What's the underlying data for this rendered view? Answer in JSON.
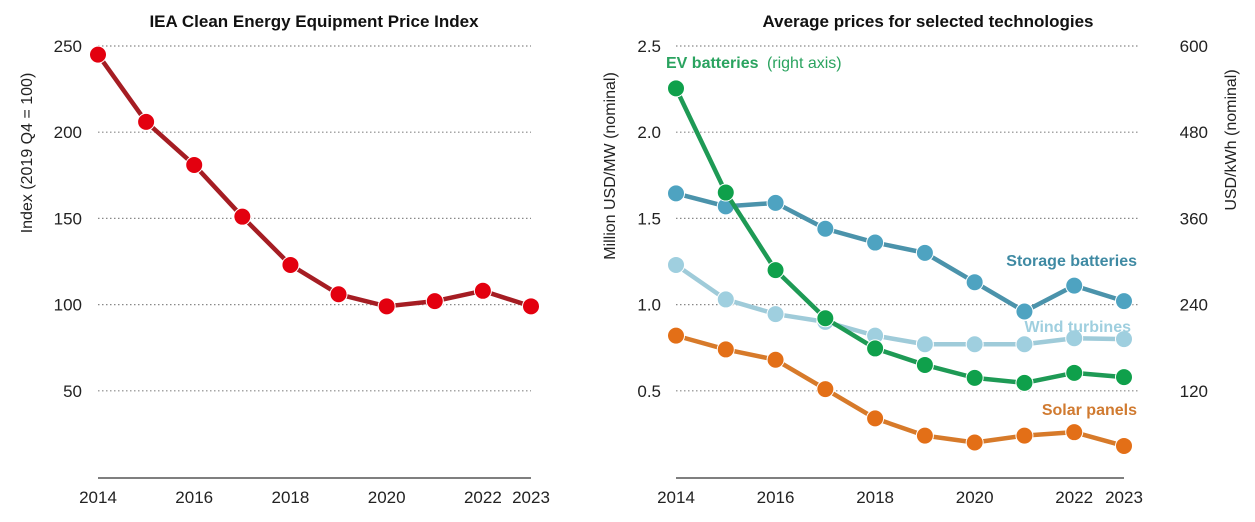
{
  "chart_data": [
    {
      "type": "line",
      "title": "IEA Clean Energy Equipment Price Index",
      "xlabel": "",
      "ylabel": "Index (2019 Q4 = 100)",
      "x": [
        2014,
        2015,
        2016,
        2017,
        2018,
        2019,
        2020,
        2021,
        2022,
        2023
      ],
      "x_tick_labels": [
        "2014",
        "2016",
        "2018",
        "2020",
        "2022",
        "2023"
      ],
      "y_ticks": [
        50,
        100,
        150,
        200,
        250
      ],
      "ylim": [
        0,
        250
      ],
      "grid": true,
      "series": [
        {
          "name": "IEA Clean Energy Equipment Price Index",
          "color": "#e3000f",
          "line_color": "#a51d23",
          "values": [
            245,
            206,
            181,
            151,
            123,
            106,
            99,
            102,
            108,
            99
          ]
        }
      ]
    },
    {
      "type": "line",
      "title": "Average prices for selected technologies",
      "xlabel": "",
      "ylabel": "Million USD/MW (nominal)",
      "ylabel_right": "USD/kWh (nominal)",
      "x": [
        2014,
        2015,
        2016,
        2017,
        2018,
        2019,
        2020,
        2021,
        2022,
        2023
      ],
      "x_tick_labels": [
        "2014",
        "2016",
        "2018",
        "2020",
        "2022",
        "2023"
      ],
      "y_ticks": [
        "0.5",
        "1.0",
        "1.5",
        "2.0",
        "2.5"
      ],
      "y_ticks_right": [
        "120",
        "240",
        "360",
        "480",
        "600"
      ],
      "ylim": [
        0,
        2.5
      ],
      "ylim_right": [
        0,
        600
      ],
      "grid": true,
      "series": [
        {
          "name": "Storage batteries",
          "axis": "left",
          "color": "#4ea3c1",
          "line_color": "#4b93ab",
          "label_color": "#3f8aa3",
          "values": [
            1.645,
            1.57,
            1.59,
            1.44,
            1.36,
            1.3,
            1.13,
            0.96,
            1.11,
            1.02
          ]
        },
        {
          "name": "Wind turbines",
          "axis": "left",
          "color": "#9fcfdf",
          "line_color": "#9fcbd9",
          "label_color": "#9fcfdf",
          "values": [
            1.23,
            1.03,
            0.945,
            0.9,
            0.82,
            0.77,
            0.77,
            0.77,
            0.805,
            0.8
          ]
        },
        {
          "name": "EV batteries",
          "name_suffix": "(right axis)",
          "axis": "right",
          "color": "#0fa04b",
          "line_color": "#1e9a55",
          "label_color": "#2aa35f",
          "values": [
            541,
            396,
            288,
            221,
            179,
            156,
            138,
            131,
            145,
            139
          ]
        },
        {
          "name": "Solar panels",
          "axis": "left",
          "color": "#e36f17",
          "line_color": "#d77a2a",
          "label_color": "#d07a30",
          "values": [
            0.82,
            0.74,
            0.68,
            0.51,
            0.34,
            0.24,
            0.2,
            0.24,
            0.26,
            0.18
          ]
        }
      ]
    }
  ]
}
